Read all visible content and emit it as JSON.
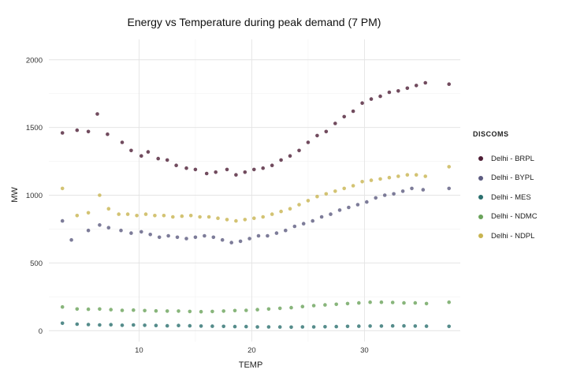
{
  "chart_data": {
    "type": "scatter",
    "title": "Energy vs Temperature during peak demand (7 PM)",
    "xlabel": "TEMP",
    "ylabel": "MW",
    "xlim": [
      2,
      38.5
    ],
    "ylim": [
      -80,
      2150
    ],
    "x_ticks": [
      10,
      20,
      30
    ],
    "y_ticks": [
      0,
      500,
      1000,
      1500,
      2000
    ],
    "grid": true,
    "legend_title": "DISCOMS",
    "legend_position": "right",
    "series": [
      {
        "name": "Delhi - BRPL",
        "color": "#4e1e36",
        "points": [
          [
            3.2,
            1460
          ],
          [
            4.5,
            1480
          ],
          [
            5.5,
            1470
          ],
          [
            6.3,
            1600
          ],
          [
            7.2,
            1450
          ],
          [
            8.5,
            1390
          ],
          [
            9.3,
            1330
          ],
          [
            10.2,
            1290
          ],
          [
            10.8,
            1320
          ],
          [
            11.7,
            1270
          ],
          [
            12.5,
            1260
          ],
          [
            13.3,
            1220
          ],
          [
            14.2,
            1200
          ],
          [
            15.0,
            1190
          ],
          [
            16.0,
            1160
          ],
          [
            16.8,
            1170
          ],
          [
            17.8,
            1190
          ],
          [
            18.6,
            1150
          ],
          [
            19.4,
            1170
          ],
          [
            20.2,
            1190
          ],
          [
            21.0,
            1200
          ],
          [
            21.8,
            1220
          ],
          [
            22.6,
            1260
          ],
          [
            23.4,
            1290
          ],
          [
            24.2,
            1330
          ],
          [
            25.0,
            1390
          ],
          [
            25.8,
            1440
          ],
          [
            26.6,
            1470
          ],
          [
            27.4,
            1530
          ],
          [
            28.2,
            1580
          ],
          [
            29.0,
            1620
          ],
          [
            29.8,
            1680
          ],
          [
            30.6,
            1710
          ],
          [
            31.4,
            1730
          ],
          [
            32.2,
            1760
          ],
          [
            33.0,
            1770
          ],
          [
            33.8,
            1790
          ],
          [
            34.6,
            1810
          ],
          [
            35.4,
            1830
          ],
          [
            37.5,
            1820
          ]
        ]
      },
      {
        "name": "Delhi - BYPL",
        "color": "#5c5b80",
        "points": [
          [
            3.2,
            810
          ],
          [
            4.0,
            670
          ],
          [
            5.5,
            740
          ],
          [
            6.5,
            780
          ],
          [
            7.3,
            760
          ],
          [
            8.4,
            740
          ],
          [
            9.3,
            720
          ],
          [
            10.2,
            730
          ],
          [
            11.0,
            710
          ],
          [
            11.8,
            690
          ],
          [
            12.6,
            700
          ],
          [
            13.4,
            690
          ],
          [
            14.2,
            680
          ],
          [
            15.0,
            690
          ],
          [
            15.8,
            700
          ],
          [
            16.6,
            690
          ],
          [
            17.4,
            670
          ],
          [
            18.2,
            650
          ],
          [
            19.0,
            660
          ],
          [
            19.8,
            680
          ],
          [
            20.6,
            700
          ],
          [
            21.4,
            700
          ],
          [
            22.2,
            720
          ],
          [
            23.0,
            740
          ],
          [
            23.8,
            770
          ],
          [
            24.6,
            790
          ],
          [
            25.4,
            810
          ],
          [
            26.2,
            840
          ],
          [
            27.0,
            860
          ],
          [
            27.8,
            890
          ],
          [
            28.6,
            910
          ],
          [
            29.4,
            930
          ],
          [
            30.2,
            950
          ],
          [
            31.0,
            980
          ],
          [
            31.8,
            1000
          ],
          [
            32.6,
            1010
          ],
          [
            33.4,
            1030
          ],
          [
            34.2,
            1050
          ],
          [
            35.2,
            1040
          ],
          [
            37.5,
            1050
          ]
        ]
      },
      {
        "name": "Delhi - MES",
        "color": "#2a6f6e",
        "points": [
          [
            3.2,
            55
          ],
          [
            4.5,
            48
          ],
          [
            5.5,
            45
          ],
          [
            6.5,
            42
          ],
          [
            7.5,
            44
          ],
          [
            8.5,
            40
          ],
          [
            9.5,
            42
          ],
          [
            10.5,
            40
          ],
          [
            11.5,
            38
          ],
          [
            12.5,
            36
          ],
          [
            13.5,
            38
          ],
          [
            14.5,
            36
          ],
          [
            15.5,
            34
          ],
          [
            16.5,
            33
          ],
          [
            17.5,
            32
          ],
          [
            18.5,
            30
          ],
          [
            19.5,
            30
          ],
          [
            20.5,
            28
          ],
          [
            21.5,
            28
          ],
          [
            22.5,
            27
          ],
          [
            23.5,
            26
          ],
          [
            24.5,
            28
          ],
          [
            25.5,
            28
          ],
          [
            26.5,
            29
          ],
          [
            27.5,
            30
          ],
          [
            28.5,
            32
          ],
          [
            29.5,
            33
          ],
          [
            30.5,
            34
          ],
          [
            31.5,
            34
          ],
          [
            32.5,
            35
          ],
          [
            33.5,
            35
          ],
          [
            34.5,
            34
          ],
          [
            35.5,
            33
          ],
          [
            37.5,
            32
          ]
        ]
      },
      {
        "name": "Delhi - NDMC",
        "color": "#6aa35a",
        "points": [
          [
            3.2,
            175
          ],
          [
            4.5,
            160
          ],
          [
            5.5,
            158
          ],
          [
            6.5,
            160
          ],
          [
            7.5,
            155
          ],
          [
            8.5,
            150
          ],
          [
            9.5,
            152
          ],
          [
            10.5,
            148
          ],
          [
            11.5,
            146
          ],
          [
            12.5,
            145
          ],
          [
            13.5,
            145
          ],
          [
            14.5,
            142
          ],
          [
            15.5,
            140
          ],
          [
            16.5,
            142
          ],
          [
            17.5,
            145
          ],
          [
            18.5,
            148
          ],
          [
            19.5,
            150
          ],
          [
            20.5,
            155
          ],
          [
            21.5,
            160
          ],
          [
            22.5,
            165
          ],
          [
            23.5,
            170
          ],
          [
            24.5,
            178
          ],
          [
            25.5,
            185
          ],
          [
            26.5,
            190
          ],
          [
            27.5,
            195
          ],
          [
            28.5,
            200
          ],
          [
            29.5,
            205
          ],
          [
            30.5,
            210
          ],
          [
            31.5,
            210
          ],
          [
            32.5,
            208
          ],
          [
            33.5,
            205
          ],
          [
            34.5,
            205
          ],
          [
            35.5,
            200
          ],
          [
            37.5,
            210
          ]
        ]
      },
      {
        "name": "Delhi - NDPL",
        "color": "#c8b450",
        "points": [
          [
            3.2,
            1050
          ],
          [
            4.5,
            850
          ],
          [
            5.5,
            870
          ],
          [
            6.5,
            1000
          ],
          [
            7.3,
            900
          ],
          [
            8.2,
            860
          ],
          [
            9.0,
            860
          ],
          [
            9.8,
            850
          ],
          [
            10.6,
            860
          ],
          [
            11.4,
            850
          ],
          [
            12.2,
            850
          ],
          [
            13.0,
            840
          ],
          [
            13.8,
            845
          ],
          [
            14.6,
            850
          ],
          [
            15.4,
            840
          ],
          [
            16.2,
            840
          ],
          [
            17.0,
            830
          ],
          [
            17.8,
            820
          ],
          [
            18.6,
            810
          ],
          [
            19.4,
            820
          ],
          [
            20.2,
            830
          ],
          [
            21.0,
            840
          ],
          [
            21.8,
            860
          ],
          [
            22.6,
            880
          ],
          [
            23.4,
            900
          ],
          [
            24.2,
            930
          ],
          [
            25.0,
            960
          ],
          [
            25.8,
            990
          ],
          [
            26.6,
            1010
          ],
          [
            27.4,
            1030
          ],
          [
            28.2,
            1050
          ],
          [
            29.0,
            1070
          ],
          [
            29.8,
            1100
          ],
          [
            30.6,
            1110
          ],
          [
            31.4,
            1120
          ],
          [
            32.2,
            1130
          ],
          [
            33.0,
            1140
          ],
          [
            33.8,
            1150
          ],
          [
            34.6,
            1150
          ],
          [
            35.4,
            1140
          ],
          [
            37.5,
            1210
          ]
        ]
      }
    ]
  }
}
